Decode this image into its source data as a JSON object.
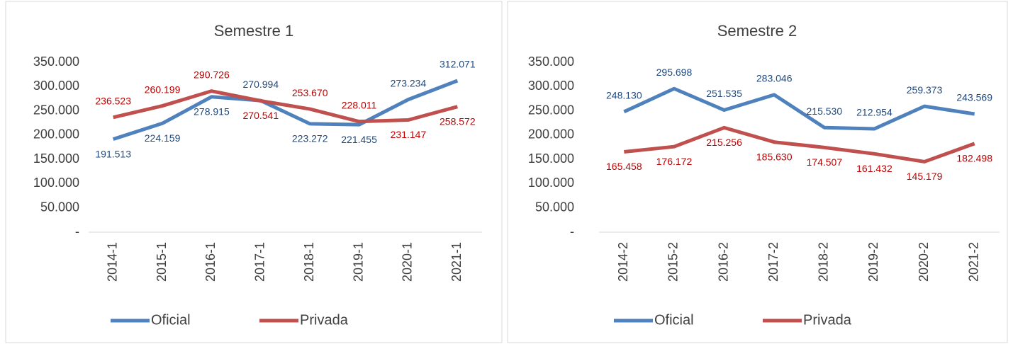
{
  "chart_data": [
    {
      "type": "line",
      "title": "Semestre 1",
      "categories": [
        "2014-1",
        "2015-1",
        "2016-1",
        "2017-1",
        "2018-1",
        "2019-1",
        "2020-1",
        "2021-1"
      ],
      "series": [
        {
          "name": "Oficial",
          "color": "#4f81bd",
          "label_color": "#1f497d",
          "values": [
            191513,
            224159,
            278915,
            270994,
            223272,
            221455,
            273234,
            312071
          ],
          "value_labels": [
            "191.513",
            "224.159",
            "278.915",
            "270.994",
            "223.272",
            "221.455",
            "273.234",
            "312.071"
          ]
        },
        {
          "name": "Privada",
          "color": "#c0504d",
          "label_color": "#c00000",
          "values": [
            236523,
            260199,
            290726,
            270541,
            253670,
            228011,
            231147,
            258572
          ],
          "value_labels": [
            "236.523",
            "260.199",
            "290.726",
            "270.541",
            "253.670",
            "228.011",
            "231.147",
            "258.572"
          ]
        }
      ],
      "ylim": [
        0,
        350000
      ],
      "yticks": [
        {
          "value": 0,
          "label": "-"
        },
        {
          "value": 50000,
          "label": "50.000"
        },
        {
          "value": 100000,
          "label": "100.000"
        },
        {
          "value": 150000,
          "label": "150.000"
        },
        {
          "value": 200000,
          "label": "200.000"
        },
        {
          "value": 250000,
          "label": "250.000"
        },
        {
          "value": 300000,
          "label": "300.000"
        },
        {
          "value": 350000,
          "label": "350.000"
        }
      ],
      "grid": false,
      "legend": "bottom"
    },
    {
      "type": "line",
      "title": "Semestre 2",
      "categories": [
        "2014-2",
        "2015-2",
        "2016-2",
        "2017-2",
        "2018-2",
        "2019-2",
        "2020-2",
        "2021-2"
      ],
      "series": [
        {
          "name": "Oficial",
          "color": "#4f81bd",
          "label_color": "#1f497d",
          "values": [
            248130,
            295698,
            251535,
            283046,
            215530,
            212954,
            259373,
            243569
          ],
          "value_labels": [
            "248.130",
            "295.698",
            "251.535",
            "283.046",
            "215.530",
            "212.954",
            "259.373",
            "243.569"
          ]
        },
        {
          "name": "Privada",
          "color": "#c0504d",
          "label_color": "#c00000",
          "values": [
            165458,
            176172,
            215256,
            185630,
            174507,
            161432,
            145179,
            182498
          ],
          "value_labels": [
            "165.458",
            "176.172",
            "215.256",
            "185.630",
            "174.507",
            "161.432",
            "145.179",
            "182.498"
          ]
        }
      ],
      "ylim": [
        0,
        350000
      ],
      "yticks": [
        {
          "value": 0,
          "label": "-"
        },
        {
          "value": 50000,
          "label": "50.000"
        },
        {
          "value": 100000,
          "label": "100.000"
        },
        {
          "value": 150000,
          "label": "150.000"
        },
        {
          "value": 200000,
          "label": "200.000"
        },
        {
          "value": 250000,
          "label": "250.000"
        },
        {
          "value": 300000,
          "label": "300.000"
        },
        {
          "value": 350000,
          "label": "350.000"
        }
      ],
      "grid": false,
      "legend": "bottom"
    }
  ]
}
